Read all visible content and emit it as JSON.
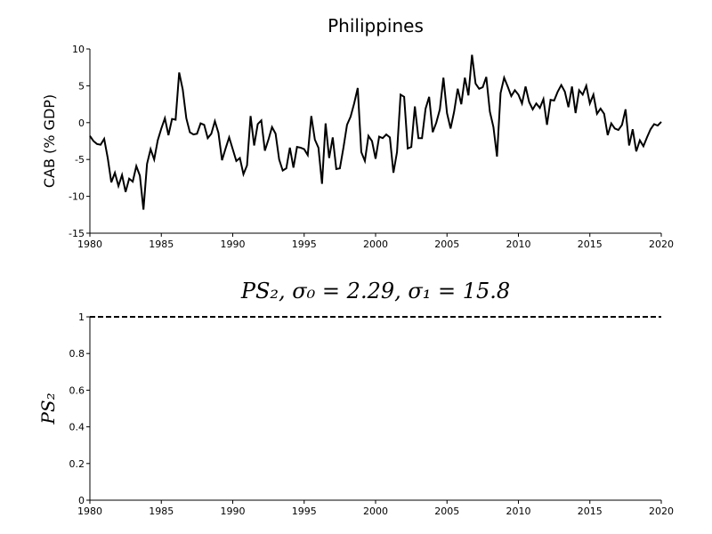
{
  "chart_data": [
    {
      "type": "line",
      "title": "Philippines",
      "ylabel": "CAB (% GDP)",
      "xlim": [
        1980,
        2020
      ],
      "xticks": [
        1980,
        1985,
        1990,
        1995,
        2000,
        2005,
        2010,
        2015,
        2020
      ],
      "ylim": [
        -15,
        10
      ],
      "yticks": [
        -15,
        -10,
        -5,
        0,
        5,
        10
      ],
      "series": [
        {
          "color": "#000000",
          "x": [
            1980,
            1980.25,
            1980.5,
            1980.75,
            1981,
            1981.25,
            1981.5,
            1981.75,
            1982,
            1982.25,
            1982.5,
            1982.75,
            1983,
            1983.25,
            1983.5,
            1983.75,
            1984,
            1984.25,
            1984.5,
            1984.75,
            1985,
            1985.25,
            1985.5,
            1985.75,
            1986,
            1986.25,
            1986.5,
            1986.75,
            1987,
            1987.25,
            1987.5,
            1987.75,
            1988,
            1988.25,
            1988.5,
            1988.75,
            1989,
            1989.25,
            1989.5,
            1989.75,
            1990,
            1990.25,
            1990.5,
            1990.75,
            1991,
            1991.25,
            1991.5,
            1991.75,
            1992,
            1992.25,
            1992.5,
            1992.75,
            1993,
            1993.25,
            1993.5,
            1993.75,
            1994,
            1994.25,
            1994.5,
            1994.75,
            1995,
            1995.25,
            1995.5,
            1995.75,
            1996,
            1996.25,
            1996.5,
            1996.75,
            1997,
            1997.25,
            1997.5,
            1997.75,
            1998,
            1998.25,
            1998.5,
            1998.75,
            1999,
            1999.25,
            1999.5,
            1999.75,
            2000,
            2000.25,
            2000.5,
            2000.75,
            2001,
            2001.25,
            2001.5,
            2001.75,
            2002,
            2002.25,
            2002.5,
            2002.75,
            2003,
            2003.25,
            2003.5,
            2003.75,
            2004,
            2004.25,
            2004.5,
            2004.75,
            2005,
            2005.25,
            2005.5,
            2005.75,
            2006,
            2006.25,
            2006.5,
            2006.75,
            2007,
            2007.25,
            2007.5,
            2007.75,
            2008,
            2008.25,
            2008.5,
            2008.75,
            2009,
            2009.25,
            2009.5,
            2009.75,
            2010,
            2010.25,
            2010.5,
            2010.75,
            2011,
            2011.25,
            2011.5,
            2011.75,
            2012,
            2012.25,
            2012.5,
            2012.75,
            2013,
            2013.25,
            2013.5,
            2013.75,
            2014,
            2014.25,
            2014.5,
            2014.75,
            2015,
            2015.25,
            2015.5,
            2015.75,
            2016,
            2016.25,
            2016.5,
            2016.75,
            2017,
            2017.25,
            2017.5,
            2017.75,
            2018,
            2018.25,
            2018.5,
            2018.75,
            2019,
            2019.25,
            2019.5,
            2019.75,
            2020
          ],
          "values": [
            -1.8,
            -2.5,
            -2.9,
            -3.0,
            -2.2,
            -4.8,
            -8.1,
            -6.8,
            -8.6,
            -7.1,
            -9.4,
            -7.6,
            -8.0,
            -5.9,
            -7.2,
            -11.8,
            -5.6,
            -3.6,
            -5.0,
            -2.4,
            -0.8,
            0.6,
            -1.7,
            0.5,
            0.4,
            6.8,
            4.5,
            0.6,
            -1.3,
            -1.6,
            -1.5,
            -0.1,
            -0.3,
            -2.1,
            -1.5,
            0.2,
            -1.4,
            -5.1,
            -3.5,
            -2.0,
            -3.6,
            -5.2,
            -4.8,
            -7.0,
            -5.8,
            0.9,
            -3.1,
            -0.2,
            0.3,
            -3.8,
            -2.3,
            -0.6,
            -1.5,
            -5.0,
            -6.5,
            -6.2,
            -3.4,
            -6.1,
            -3.3,
            -3.4,
            -3.6,
            -4.4,
            0.9,
            -2.3,
            -3.4,
            -8.3,
            -0.1,
            -4.8,
            -2.0,
            -6.3,
            -6.2,
            -3.4,
            -0.3,
            0.8,
            2.6,
            4.7,
            -4.0,
            -5.2,
            -1.8,
            -2.5,
            -4.9,
            -1.9,
            -2.1,
            -1.6,
            -2.0,
            -6.8,
            -4.0,
            3.8,
            3.5,
            -3.5,
            -3.3,
            2.2,
            -2.1,
            -2.1,
            1.9,
            3.5,
            -1.3,
            0.0,
            1.8,
            6.1,
            1.3,
            -0.8,
            1.5,
            4.6,
            2.5,
            6.1,
            3.7,
            9.2,
            5.3,
            4.6,
            4.8,
            6.2,
            1.5,
            -0.6,
            -4.6,
            4.0,
            6.1,
            4.9,
            3.6,
            4.4,
            3.8,
            2.6,
            4.9,
            2.8,
            1.8,
            2.6,
            2.0,
            3.2,
            -0.3,
            3.1,
            3.0,
            4.2,
            5.1,
            4.2,
            2.1,
            4.9,
            1.3,
            4.4,
            3.8,
            5.0,
            2.6,
            3.8,
            1.2,
            1.9,
            1.2,
            -1.7,
            -0.1,
            -0.8,
            -1.0,
            -0.3,
            1.8,
            -3.1,
            -0.9,
            -3.9,
            -2.4,
            -3.2,
            -2.0,
            -0.9,
            -0.2,
            -0.4,
            0.1
          ]
        }
      ]
    },
    {
      "type": "line",
      "title": "PS₂, σ₀ = 2.29, σ₁ = 15.8",
      "ylabel": "PS₂",
      "xlim": [
        1980,
        2020
      ],
      "xticks": [
        1980,
        1985,
        1990,
        1995,
        2000,
        2005,
        2010,
        2015,
        2020
      ],
      "ylim": [
        0,
        1
      ],
      "yticks": [
        0,
        0.2,
        0.4,
        0.6,
        0.8,
        1
      ],
      "series": [
        {
          "color": "#000000",
          "dashed": true,
          "x": [
            1980,
            2020
          ],
          "values": [
            1,
            1
          ]
        }
      ]
    }
  ]
}
